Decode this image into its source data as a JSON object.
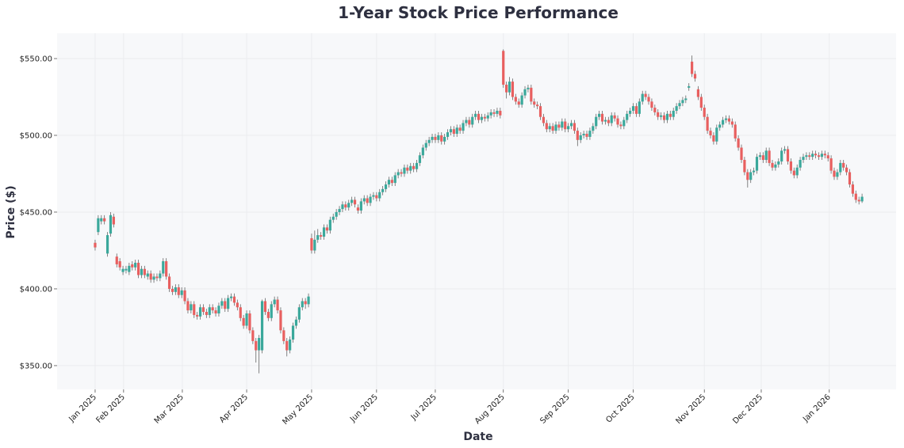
{
  "chart_data": {
    "type": "candlestick",
    "title": "1-Year Stock Price Performance",
    "xlabel": "Date",
    "ylabel": "Price ($)",
    "ylim": [
      334.5,
      566.5
    ],
    "xlim_index": [
      -12.3,
      259
    ],
    "grid": true,
    "colors": {
      "up": "#3aa89b",
      "down": "#e85f5f",
      "plot_background": "#f7f8fa",
      "grid": "#ebecef",
      "title": "#2e3040"
    },
    "yticks": [
      {
        "value": 350,
        "label": "$350.00"
      },
      {
        "value": 400,
        "label": "$400.00"
      },
      {
        "value": 450,
        "label": "$450.00"
      },
      {
        "value": 500,
        "label": "$500.00"
      },
      {
        "value": 550,
        "label": "$550.00"
      }
    ],
    "xticks": [
      {
        "index": 0,
        "label": "Jan 2025"
      },
      {
        "index": 9.2,
        "label": "Feb 2025"
      },
      {
        "index": 28.2,
        "label": "Mar 2025"
      },
      {
        "index": 49,
        "label": "Apr 2025"
      },
      {
        "index": 70,
        "label": "May 2025"
      },
      {
        "index": 91,
        "label": "Jun 2025"
      },
      {
        "index": 110,
        "label": "Jul 2025"
      },
      {
        "index": 132,
        "label": "Aug 2025"
      },
      {
        "index": 153,
        "label": "Sep 2025"
      },
      {
        "index": 174,
        "label": "Oct 2025"
      },
      {
        "index": 197,
        "label": "Nov 2025"
      },
      {
        "index": 215.4,
        "label": "Dec 2025"
      },
      {
        "index": 237.4,
        "label": "Jan 2026"
      }
    ],
    "open": [
      430,
      437,
      444,
      446,
      423,
      436,
      447,
      421,
      418,
      411,
      412,
      411,
      416,
      414,
      417,
      409,
      413,
      408,
      410,
      406,
      408,
      407,
      410,
      418,
      408,
      400,
      398,
      401,
      396,
      399,
      392,
      386,
      390,
      383,
      382,
      388,
      385,
      383,
      388,
      386,
      384,
      389,
      392,
      387,
      394,
      395,
      391,
      388,
      381,
      376,
      384,
      373,
      366,
      360,
      360,
      392,
      385,
      381,
      390,
      393,
      386,
      373,
      366,
      360,
      367,
      376,
      380,
      388,
      392,
      390,
      433,
      425,
      432,
      435,
      434,
      440,
      438,
      445,
      447,
      450,
      452,
      455,
      453,
      456,
      458,
      453,
      451,
      457,
      459,
      456,
      460,
      461,
      459,
      463,
      465,
      468,
      471,
      469,
      474,
      476,
      475,
      479,
      477,
      480,
      478,
      482,
      487,
      492,
      495,
      497,
      499,
      497,
      500,
      496,
      499,
      502,
      504,
      501,
      505,
      503,
      508,
      510,
      507,
      512,
      514,
      510,
      512,
      511,
      513,
      515,
      514,
      516,
      555,
      533,
      528,
      535,
      525,
      522,
      520,
      526,
      530,
      531,
      522,
      520,
      519,
      512,
      508,
      504,
      506,
      503,
      507,
      505,
      509,
      504,
      506,
      508,
      503,
      497,
      500,
      501,
      499,
      503,
      506,
      512,
      514,
      509,
      510,
      508,
      513,
      511,
      507,
      506,
      510,
      514,
      516,
      519,
      514,
      522,
      527,
      525,
      522,
      518,
      515,
      512,
      513,
      510,
      514,
      512,
      516,
      519,
      521,
      523,
      531,
      548,
      540,
      530,
      525,
      518,
      512,
      503,
      500,
      496,
      505,
      507,
      510,
      511,
      509,
      507,
      498,
      492,
      484,
      476,
      471,
      476,
      477,
      486,
      487,
      484,
      490,
      482,
      479,
      481,
      483,
      490,
      491,
      483,
      477,
      474,
      479,
      484,
      486,
      487,
      486,
      488,
      487,
      486,
      488,
      487,
      485,
      477,
      473,
      476,
      482,
      479,
      476,
      468,
      462,
      458,
      457
    ],
    "high": [
      432,
      448,
      448,
      448,
      437,
      450,
      449,
      423,
      420,
      415,
      415,
      417,
      418,
      419,
      419,
      415,
      415,
      412,
      412,
      410,
      410,
      412,
      420,
      420,
      410,
      402,
      403,
      403,
      401,
      401,
      394,
      392,
      392,
      385,
      390,
      390,
      387,
      390,
      390,
      388,
      391,
      394,
      394,
      396,
      397,
      397,
      393,
      390,
      383,
      386,
      386,
      375,
      368,
      370,
      393,
      394,
      387,
      392,
      395,
      395,
      388,
      375,
      368,
      369,
      378,
      382,
      390,
      394,
      394,
      397,
      436,
      438,
      439,
      437,
      442,
      442,
      447,
      449,
      452,
      454,
      457,
      457,
      458,
      460,
      460,
      455,
      459,
      461,
      461,
      462,
      463,
      463,
      465,
      467,
      470,
      473,
      473,
      476,
      478,
      478,
      481,
      481,
      482,
      482,
      484,
      489,
      494,
      497,
      499,
      501,
      501,
      502,
      502,
      501,
      504,
      506,
      506,
      507,
      507,
      510,
      512,
      512,
      514,
      516,
      516,
      514,
      514,
      515,
      517,
      517,
      518,
      518,
      556,
      535,
      538,
      537,
      527,
      524,
      528,
      532,
      533,
      533,
      524,
      522,
      521,
      514,
      510,
      508,
      508,
      509,
      509,
      511,
      511,
      508,
      510,
      510,
      505,
      502,
      503,
      503,
      505,
      508,
      514,
      516,
      516,
      512,
      512,
      515,
      515,
      513,
      509,
      512,
      516,
      518,
      521,
      521,
      524,
      529,
      529,
      527,
      524,
      520,
      517,
      515,
      515,
      516,
      516,
      518,
      521,
      523,
      525,
      526,
      534,
      552,
      542,
      532,
      527,
      520,
      514,
      505,
      502,
      507,
      509,
      512,
      513,
      513,
      511,
      509,
      500,
      494,
      486,
      478,
      478,
      479,
      488,
      489,
      489,
      492,
      492,
      484,
      483,
      485,
      492,
      493,
      493,
      485,
      479,
      481,
      486,
      488,
      489,
      489,
      490,
      490,
      489,
      490,
      490,
      489,
      487,
      479,
      478,
      484,
      484,
      481,
      478,
      470,
      464,
      460,
      462
    ],
    "low": [
      425,
      435,
      442,
      442,
      421,
      434,
      440,
      414,
      412,
      409,
      410,
      409,
      412,
      412,
      407,
      407,
      407,
      406,
      404,
      404,
      405,
      405,
      408,
      406,
      398,
      396,
      396,
      394,
      394,
      390,
      384,
      384,
      381,
      380,
      380,
      383,
      381,
      381,
      384,
      382,
      382,
      387,
      385,
      385,
      392,
      389,
      386,
      379,
      374,
      374,
      371,
      364,
      352,
      345,
      358,
      383,
      379,
      379,
      388,
      384,
      371,
      364,
      356,
      358,
      365,
      374,
      378,
      386,
      387,
      388,
      423,
      423,
      430,
      432,
      432,
      436,
      436,
      443,
      445,
      448,
      450,
      451,
      451,
      454,
      453,
      449,
      449,
      455,
      454,
      454,
      458,
      457,
      457,
      461,
      463,
      466,
      467,
      467,
      472,
      473,
      473,
      475,
      475,
      476,
      476,
      480,
      485,
      490,
      493,
      495,
      495,
      495,
      494,
      494,
      497,
      500,
      499,
      499,
      501,
      501,
      506,
      505,
      505,
      510,
      508,
      508,
      509,
      509,
      511,
      512,
      512,
      511,
      531,
      524,
      526,
      523,
      520,
      518,
      518,
      524,
      528,
      520,
      518,
      517,
      510,
      506,
      502,
      502,
      501,
      501,
      503,
      503,
      502,
      502,
      504,
      501,
      493,
      495,
      498,
      497,
      497,
      501,
      504,
      510,
      507,
      507,
      506,
      506,
      509,
      505,
      504,
      504,
      508,
      512,
      514,
      512,
      512,
      520,
      523,
      520,
      516,
      513,
      510,
      510,
      508,
      508,
      510,
      510,
      514,
      517,
      519,
      521,
      529,
      538,
      535,
      523,
      516,
      510,
      501,
      498,
      494,
      494,
      503,
      505,
      508,
      507,
      505,
      496,
      490,
      482,
      474,
      466,
      469,
      474,
      475,
      484,
      482,
      482,
      480,
      477,
      477,
      479,
      481,
      488,
      481,
      475,
      472,
      472,
      477,
      482,
      484,
      484,
      484,
      485,
      484,
      484,
      485,
      483,
      475,
      471,
      471,
      474,
      477,
      474,
      466,
      460,
      456,
      455,
      456
    ],
    "close": [
      427,
      446,
      446,
      444,
      435,
      448,
      442,
      416,
      414,
      413,
      413,
      415,
      414,
      417,
      409,
      413,
      409,
      410,
      406,
      408,
      407,
      410,
      418,
      408,
      400,
      398,
      401,
      396,
      399,
      392,
      386,
      390,
      383,
      382,
      388,
      385,
      383,
      388,
      386,
      384,
      389,
      392,
      387,
      394,
      395,
      391,
      388,
      381,
      376,
      384,
      373,
      366,
      360,
      368,
      392,
      385,
      381,
      390,
      393,
      386,
      373,
      366,
      360,
      367,
      376,
      380,
      388,
      392,
      390,
      395,
      425,
      432,
      435,
      434,
      440,
      438,
      445,
      447,
      450,
      452,
      455,
      453,
      456,
      458,
      455,
      451,
      457,
      459,
      456,
      460,
      461,
      459,
      463,
      465,
      468,
      471,
      469,
      474,
      476,
      475,
      479,
      477,
      480,
      478,
      482,
      487,
      492,
      495,
      497,
      499,
      497,
      500,
      496,
      499,
      502,
      504,
      501,
      505,
      503,
      508,
      510,
      507,
      512,
      514,
      510,
      512,
      511,
      513,
      515,
      514,
      516,
      513,
      533,
      528,
      535,
      525,
      522,
      520,
      526,
      530,
      531,
      522,
      520,
      519,
      512,
      508,
      504,
      506,
      503,
      507,
      505,
      509,
      504,
      506,
      508,
      503,
      497,
      500,
      501,
      499,
      503,
      506,
      512,
      514,
      509,
      510,
      508,
      513,
      511,
      507,
      506,
      510,
      514,
      516,
      519,
      514,
      522,
      527,
      525,
      522,
      518,
      515,
      512,
      513,
      510,
      514,
      512,
      516,
      519,
      521,
      523,
      524,
      532,
      540,
      537,
      525,
      518,
      512,
      503,
      500,
      496,
      505,
      507,
      510,
      511,
      509,
      507,
      498,
      492,
      484,
      476,
      471,
      476,
      477,
      486,
      487,
      484,
      490,
      482,
      479,
      481,
      483,
      490,
      491,
      483,
      477,
      474,
      479,
      484,
      486,
      487,
      486,
      488,
      487,
      486,
      488,
      487,
      485,
      477,
      473,
      476,
      482,
      479,
      476,
      468,
      462,
      458,
      457,
      460
    ]
  }
}
